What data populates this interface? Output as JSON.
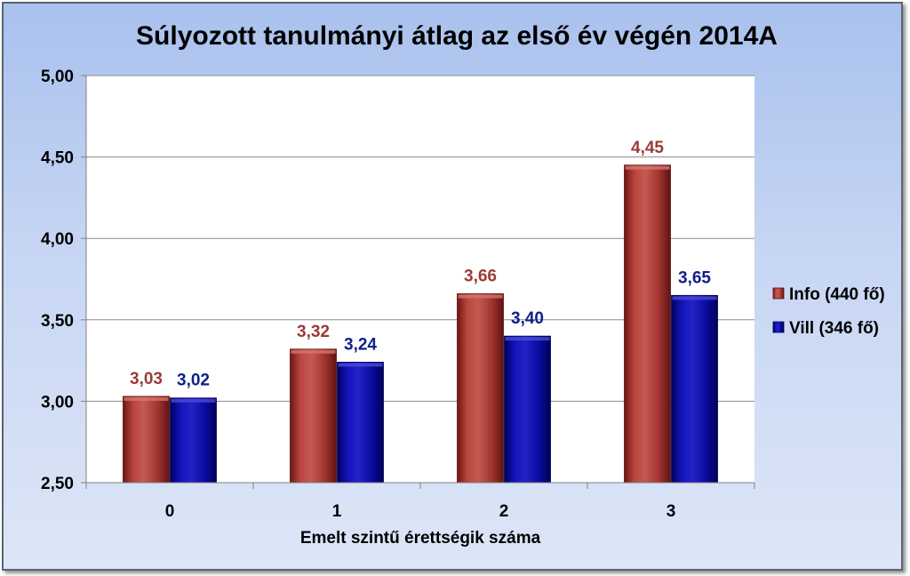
{
  "chart_data": {
    "type": "bar",
    "title": "Súlyozott tanulmányi átlag az első év végén 2014A",
    "xlabel": "Emelt szintű érettségik száma",
    "ylabel": "",
    "categories": [
      "0",
      "1",
      "2",
      "3"
    ],
    "ylim": [
      2.5,
      5.0
    ],
    "yticks": [
      2.5,
      3.0,
      3.5,
      4.0,
      4.5,
      5.0
    ],
    "ytick_labels": [
      "2,50",
      "3,00",
      "3,50",
      "4,00",
      "4,50",
      "5,00"
    ],
    "grid": true,
    "legend_position": "right",
    "series": [
      {
        "name": "Info (440 fő)",
        "values": [
          3.03,
          3.32,
          3.66,
          4.45
        ],
        "labels": [
          "3,03",
          "3,32",
          "3,66",
          "4,45"
        ],
        "color": "#a0302f",
        "label_color": "#9b3b36"
      },
      {
        "name": "Vill (346 fő)",
        "values": [
          3.02,
          3.24,
          3.4,
          3.65
        ],
        "labels": [
          "3,02",
          "3,24",
          "3,40",
          "3,65"
        ],
        "color": "#0a0a9a",
        "label_color": "#10208a"
      }
    ]
  }
}
